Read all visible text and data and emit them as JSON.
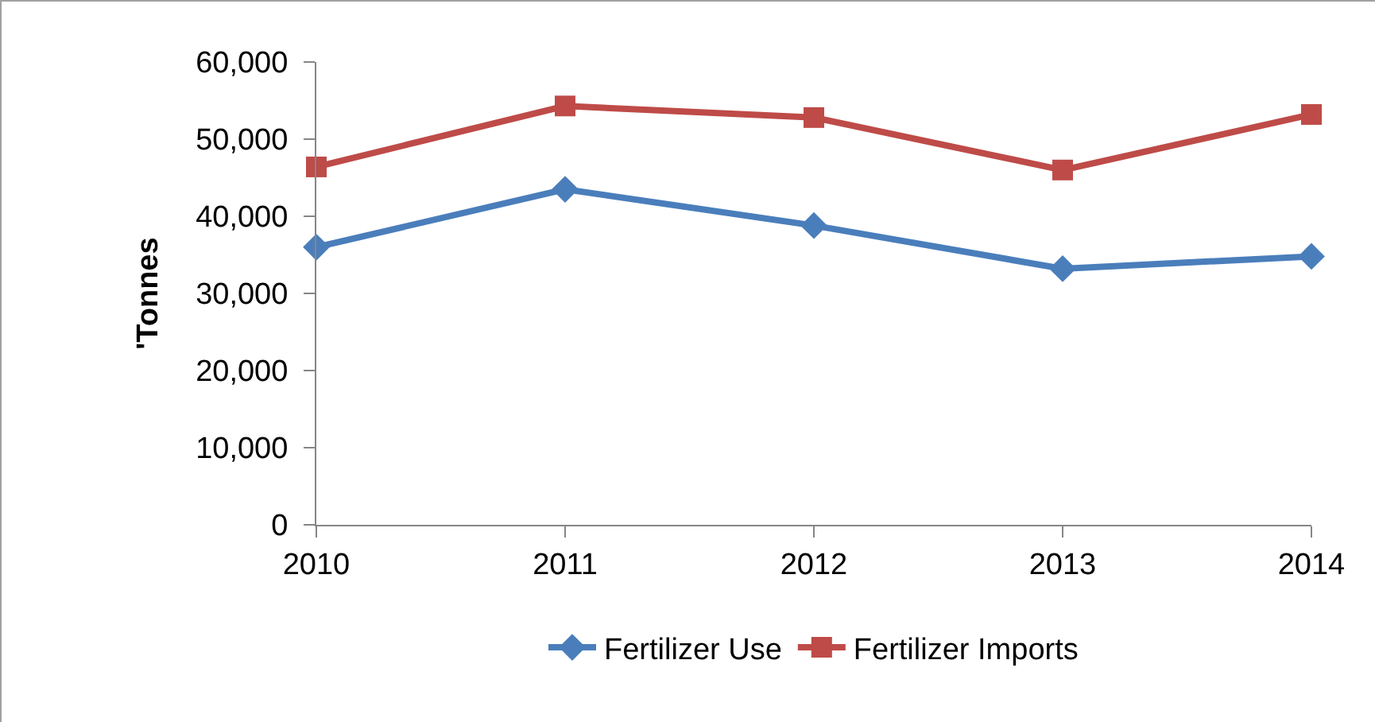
{
  "chart_data": {
    "type": "line",
    "ylabel": "'Tonnes",
    "categories": [
      "2010",
      "2011",
      "2012",
      "2013",
      "2014"
    ],
    "series": [
      {
        "name": "Fertilizer Use",
        "color": "#4a7ebb",
        "marker": "diamond",
        "values": [
          36000,
          43500,
          38800,
          33200,
          34800
        ]
      },
      {
        "name": "Fertilizer Imports",
        "color": "#be4b48",
        "marker": "square",
        "values": [
          46400,
          54300,
          52800,
          46000,
          53200
        ]
      }
    ],
    "ylim": [
      0,
      60000
    ],
    "yticks": [
      0,
      {
        "value": 10000,
        "label": "10,000"
      },
      {
        "value": 20000,
        "label": "20,000"
      },
      {
        "value": 30000,
        "label": "30,000"
      },
      {
        "value": 40000,
        "label": "40,000"
      },
      {
        "value": 50000,
        "label": "50,000"
      },
      {
        "value": 60000,
        "label": "60,000"
      }
    ],
    "grid": false,
    "legend": "bottom",
    "line_style": "solid"
  }
}
